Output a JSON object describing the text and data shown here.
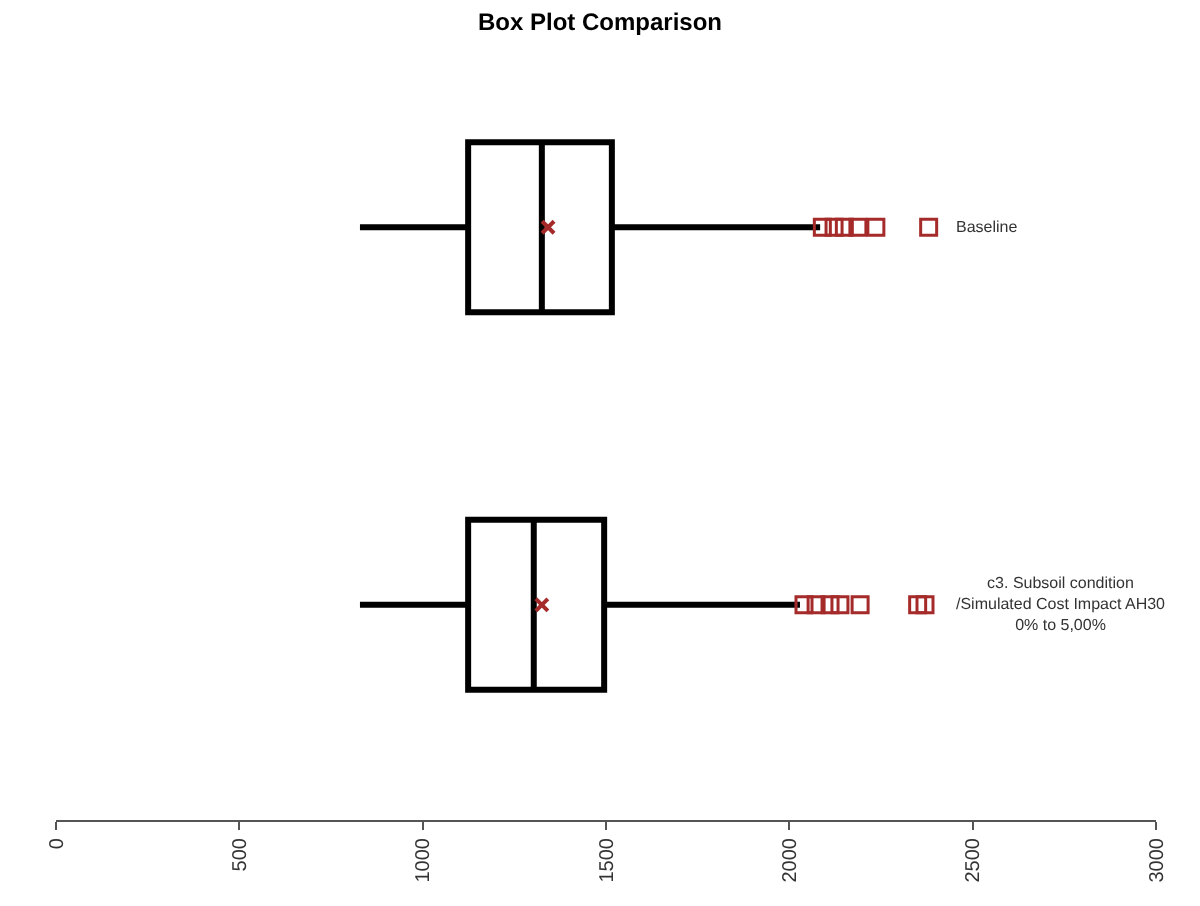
{
  "chart_data": {
    "type": "box",
    "title": "Box Plot Comparison",
    "categories": [
      "Baseline",
      "c3. Subsoil condition\n/Simulated Cost Impact AH30\n0% to 5,00%"
    ],
    "orientation": "horizontal",
    "series": [
      {
        "color": "#000000",
        "boxes": [
          {
            "low": 829,
            "q1": 1124,
            "median": 1325,
            "q3": 1516,
            "high": 2084,
            "mean": 1342,
            "outliers": [
              2090,
              2122,
              2150,
              2187,
              2236,
              2380
            ]
          },
          {
            "low": 829,
            "q1": 1124,
            "median": 1303,
            "q3": 1495,
            "high": 2029,
            "mean": 1325,
            "outliers": [
              2040,
              2073,
              2111,
              2138,
              2193,
              2350,
              2370
            ]
          }
        ]
      }
    ],
    "marker": "square",
    "xlim": [
      0,
      3000
    ],
    "xticks": [
      0,
      500,
      1000,
      1500,
      2000,
      2500,
      3000
    ]
  }
}
